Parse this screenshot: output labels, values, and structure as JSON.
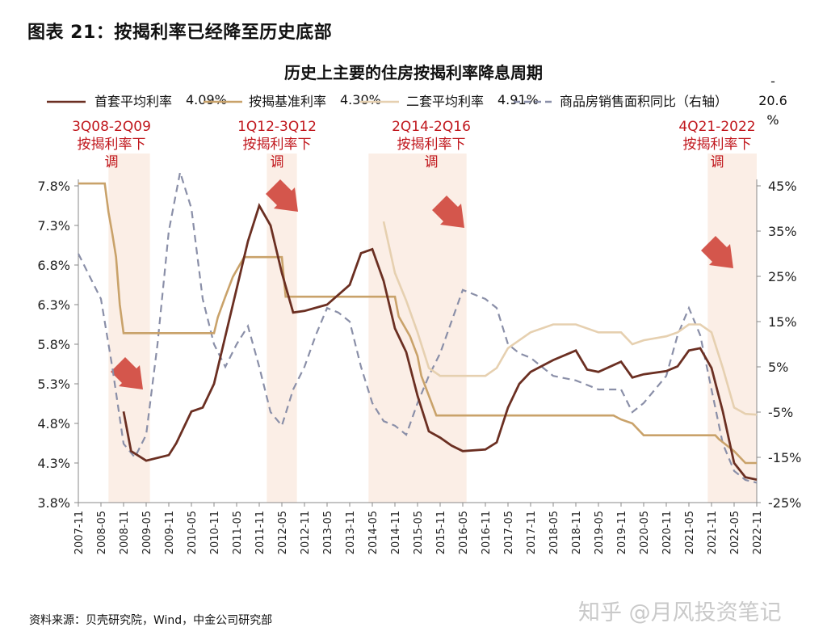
{
  "figure_title": "图表 21：按揭利率已经降至历史底部",
  "source_note": "资料来源：贝壳研究院，Wind，中金公司研究部",
  "watermark": "知乎 @月风投资笔记",
  "colors": {
    "first_home": "#6b2f22",
    "benchmark": "#c9a26a",
    "second_home": "#e6d0b0",
    "sales": "#8a8fa8",
    "band": "#fbeee6",
    "arrow": "#cc3b30",
    "annotation": "#c0161c"
  },
  "chart_data": {
    "type": "line",
    "title": "历史上主要的住房按揭利率降息周期",
    "x_ticks": [
      "2007-11",
      "2008-05",
      "2008-11",
      "2009-05",
      "2009-11",
      "2010-05",
      "2010-11",
      "2011-05",
      "2011-11",
      "2012-05",
      "2012-11",
      "2013-05",
      "2013-11",
      "2014-05",
      "2014-11",
      "2015-05",
      "2015-11",
      "2016-05",
      "2016-11",
      "2017-05",
      "2017-11",
      "2018-05",
      "2018-11",
      "2019-05",
      "2019-11",
      "2020-05",
      "2020-11",
      "2021-05",
      "2021-11",
      "2022-05",
      "2022-11"
    ],
    "y_left_ticks": [
      "7.8%",
      "7.3%",
      "6.8%",
      "6.3%",
      "5.8%",
      "5.3%",
      "4.8%",
      "4.3%",
      "3.8%"
    ],
    "y_left_range": [
      3.8,
      7.8
    ],
    "y_right_ticks": [
      "45%",
      "35%",
      "25%",
      "15%",
      "5%",
      "-5%",
      "-15%",
      "-25%"
    ],
    "y_right_range": [
      -25,
      45
    ],
    "legend": [
      {
        "label": "首套平均利率",
        "value": "4.09%",
        "series": "first_home"
      },
      {
        "label": "按揭基准利率",
        "value": "4.30%",
        "series": "benchmark"
      },
      {
        "label": "二套平均利率",
        "value": "4.91%",
        "series": "second_home"
      },
      {
        "label": "商品房销售面积同比（右轴）",
        "value": "-20.6%",
        "series": "sales"
      }
    ],
    "bands": [
      {
        "label": "3Q08-2Q09\n按揭利率下\n调",
        "start": "2008-07",
        "end": "2009-06"
      },
      {
        "label": "1Q12-3Q12\n按揭利率下\n调",
        "start": "2012-01",
        "end": "2012-09"
      },
      {
        "label": "2Q14-2Q16\n按揭利率下\n调",
        "start": "2014-04",
        "end": "2016-06"
      },
      {
        "label": "4Q21-2022\n按揭利率下\n调",
        "start": "2021-10",
        "end": "2022-12"
      }
    ],
    "series": {
      "first_home": [
        [
          "2008-11",
          4.95
        ],
        [
          "2009-01",
          4.45
        ],
        [
          "2009-05",
          4.33
        ],
        [
          "2009-11",
          4.4
        ],
        [
          "2010-01",
          4.55
        ],
        [
          "2010-05",
          4.95
        ],
        [
          "2010-08",
          5.0
        ],
        [
          "2010-11",
          5.3
        ],
        [
          "2011-02",
          5.9
        ],
        [
          "2011-05",
          6.5
        ],
        [
          "2011-08",
          7.1
        ],
        [
          "2011-11",
          7.55
        ],
        [
          "2012-02",
          7.3
        ],
        [
          "2012-05",
          6.7
        ],
        [
          "2012-08",
          6.2
        ],
        [
          "2012-11",
          6.22
        ],
        [
          "2013-05",
          6.3
        ],
        [
          "2013-11",
          6.55
        ],
        [
          "2014-02",
          6.95
        ],
        [
          "2014-05",
          7.0
        ],
        [
          "2014-08",
          6.6
        ],
        [
          "2014-11",
          6.0
        ],
        [
          "2015-02",
          5.7
        ],
        [
          "2015-05",
          5.15
        ],
        [
          "2015-08",
          4.7
        ],
        [
          "2015-11",
          4.62
        ],
        [
          "2016-02",
          4.52
        ],
        [
          "2016-05",
          4.45
        ],
        [
          "2016-11",
          4.47
        ],
        [
          "2017-02",
          4.56
        ],
        [
          "2017-05",
          5.0
        ],
        [
          "2017-08",
          5.3
        ],
        [
          "2017-11",
          5.45
        ],
        [
          "2018-05",
          5.6
        ],
        [
          "2018-11",
          5.72
        ],
        [
          "2019-02",
          5.48
        ],
        [
          "2019-05",
          5.45
        ],
        [
          "2019-11",
          5.58
        ],
        [
          "2020-02",
          5.38
        ],
        [
          "2020-05",
          5.42
        ],
        [
          "2020-11",
          5.46
        ],
        [
          "2021-02",
          5.52
        ],
        [
          "2021-05",
          5.72
        ],
        [
          "2021-08",
          5.75
        ],
        [
          "2021-11",
          5.5
        ],
        [
          "2022-02",
          4.95
        ],
        [
          "2022-05",
          4.3
        ],
        [
          "2022-08",
          4.12
        ],
        [
          "2022-11",
          4.09
        ]
      ],
      "benchmark": [
        [
          "2007-11",
          7.83
        ],
        [
          "2008-06",
          7.83
        ],
        [
          "2008-07",
          7.47
        ],
        [
          "2008-08",
          7.2
        ],
        [
          "2008-09",
          6.9
        ],
        [
          "2008-10",
          6.3
        ],
        [
          "2008-11",
          5.94
        ],
        [
          "2010-11",
          5.94
        ],
        [
          "2010-12",
          6.14
        ],
        [
          "2011-02",
          6.4
        ],
        [
          "2011-04",
          6.65
        ],
        [
          "2011-07",
          6.9
        ],
        [
          "2012-05",
          6.9
        ],
        [
          "2012-06",
          6.4
        ],
        [
          "2014-11",
          6.4
        ],
        [
          "2014-12",
          6.15
        ],
        [
          "2015-03",
          5.9
        ],
        [
          "2015-05",
          5.65
        ],
        [
          "2015-06",
          5.4
        ],
        [
          "2015-08",
          5.15
        ],
        [
          "2015-10",
          4.9
        ],
        [
          "2019-09",
          4.9
        ],
        [
          "2019-11",
          4.85
        ],
        [
          "2020-02",
          4.8
        ],
        [
          "2020-05",
          4.65
        ],
        [
          "2021-12",
          4.65
        ],
        [
          "2022-01",
          4.6
        ],
        [
          "2022-05",
          4.45
        ],
        [
          "2022-08",
          4.3
        ],
        [
          "2022-11",
          4.3
        ]
      ],
      "second_home": [
        [
          "2014-08",
          7.35
        ],
        [
          "2014-11",
          6.7
        ],
        [
          "2015-02",
          6.35
        ],
        [
          "2015-05",
          5.95
        ],
        [
          "2015-08",
          5.5
        ],
        [
          "2015-11",
          5.4
        ],
        [
          "2016-05",
          5.4
        ],
        [
          "2016-11",
          5.4
        ],
        [
          "2017-02",
          5.5
        ],
        [
          "2017-05",
          5.75
        ],
        [
          "2017-08",
          5.85
        ],
        [
          "2017-11",
          5.95
        ],
        [
          "2018-05",
          6.05
        ],
        [
          "2018-11",
          6.05
        ],
        [
          "2019-05",
          5.95
        ],
        [
          "2019-11",
          5.95
        ],
        [
          "2020-02",
          5.8
        ],
        [
          "2020-05",
          5.85
        ],
        [
          "2020-11",
          5.9
        ],
        [
          "2021-02",
          5.95
        ],
        [
          "2021-05",
          6.05
        ],
        [
          "2021-08",
          6.05
        ],
        [
          "2021-11",
          5.95
        ],
        [
          "2022-02",
          5.5
        ],
        [
          "2022-05",
          5.0
        ],
        [
          "2022-08",
          4.92
        ],
        [
          "2022-11",
          4.91
        ]
      ],
      "sales": [
        [
          "2007-11",
          30
        ],
        [
          "2008-02",
          25
        ],
        [
          "2008-05",
          20
        ],
        [
          "2008-08",
          5
        ],
        [
          "2008-11",
          -12
        ],
        [
          "2009-02",
          -15
        ],
        [
          "2009-05",
          -10
        ],
        [
          "2009-08",
          10
        ],
        [
          "2009-11",
          35
        ],
        [
          "2010-02",
          48
        ],
        [
          "2010-05",
          40
        ],
        [
          "2010-08",
          20
        ],
        [
          "2010-11",
          10
        ],
        [
          "2011-02",
          5
        ],
        [
          "2011-05",
          10
        ],
        [
          "2011-08",
          14
        ],
        [
          "2011-11",
          5
        ],
        [
          "2012-02",
          -5
        ],
        [
          "2012-05",
          -8
        ],
        [
          "2012-08",
          0
        ],
        [
          "2012-11",
          5
        ],
        [
          "2013-02",
          12
        ],
        [
          "2013-05",
          18
        ],
        [
          "2013-08",
          17
        ],
        [
          "2013-11",
          15
        ],
        [
          "2014-02",
          5
        ],
        [
          "2014-05",
          -3
        ],
        [
          "2014-08",
          -7
        ],
        [
          "2014-11",
          -8
        ],
        [
          "2015-02",
          -10
        ],
        [
          "2015-05",
          -3
        ],
        [
          "2015-08",
          3
        ],
        [
          "2015-11",
          8
        ],
        [
          "2016-02",
          15
        ],
        [
          "2016-05",
          22
        ],
        [
          "2016-08",
          21
        ],
        [
          "2016-11",
          20
        ],
        [
          "2017-02",
          18
        ],
        [
          "2017-05",
          10
        ],
        [
          "2017-08",
          8
        ],
        [
          "2017-11",
          7
        ],
        [
          "2018-05",
          3
        ],
        [
          "2018-11",
          2
        ],
        [
          "2019-05",
          0
        ],
        [
          "2019-11",
          0
        ],
        [
          "2020-02",
          -5
        ],
        [
          "2020-05",
          -3
        ],
        [
          "2020-11",
          3
        ],
        [
          "2021-02",
          12
        ],
        [
          "2021-05",
          18
        ],
        [
          "2021-08",
          12
        ],
        [
          "2021-11",
          0
        ],
        [
          "2022-02",
          -12
        ],
        [
          "2022-05",
          -18
        ],
        [
          "2022-08",
          -20
        ],
        [
          "2022-11",
          -20.6
        ]
      ]
    }
  }
}
